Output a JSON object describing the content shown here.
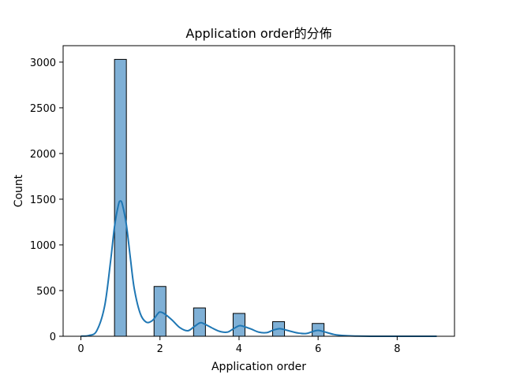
{
  "chart_data": {
    "type": "bar",
    "title": "Application order的分佈",
    "xlabel": "Application order",
    "ylabel": "Count",
    "xlim": [
      -0.45,
      9.45
    ],
    "ylim": [
      0,
      3180
    ],
    "xticks": [
      0,
      2,
      4,
      6,
      8
    ],
    "yticks": [
      0,
      500,
      1000,
      1500,
      2000,
      2500,
      3000
    ],
    "bar_color": "#7fb0d6",
    "edge_color": "#000000",
    "kde_color": "#1f77b4",
    "bin_width": 0.3,
    "bars": [
      {
        "x": 1,
        "value": 3030
      },
      {
        "x": 2,
        "value": 545
      },
      {
        "x": 3,
        "value": 310
      },
      {
        "x": 4,
        "value": 250
      },
      {
        "x": 5,
        "value": 160
      },
      {
        "x": 6,
        "value": 140
      }
    ],
    "kde": {
      "x": [
        0,
        0.2,
        0.4,
        0.6,
        0.75,
        0.85,
        0.95,
        1.0,
        1.05,
        1.15,
        1.25,
        1.35,
        1.5,
        1.65,
        1.8,
        1.95,
        2.0,
        2.1,
        2.3,
        2.5,
        2.7,
        2.85,
        3.0,
        3.1,
        3.3,
        3.5,
        3.7,
        3.85,
        4.0,
        4.1,
        4.3,
        4.5,
        4.7,
        4.85,
        5.0,
        5.1,
        5.3,
        5.5,
        5.7,
        5.85,
        6.0,
        6.15,
        6.4,
        6.7,
        7.0,
        7.5,
        8.0,
        8.5,
        9.0
      ],
      "y": [
        2,
        8,
        60,
        330,
        820,
        1200,
        1440,
        1480,
        1440,
        1220,
        860,
        520,
        250,
        155,
        170,
        250,
        265,
        250,
        180,
        95,
        60,
        100,
        145,
        140,
        95,
        55,
        45,
        80,
        115,
        110,
        80,
        45,
        40,
        65,
        82,
        78,
        55,
        35,
        30,
        50,
        65,
        50,
        20,
        6,
        2,
        0,
        0,
        0,
        0
      ]
    }
  }
}
